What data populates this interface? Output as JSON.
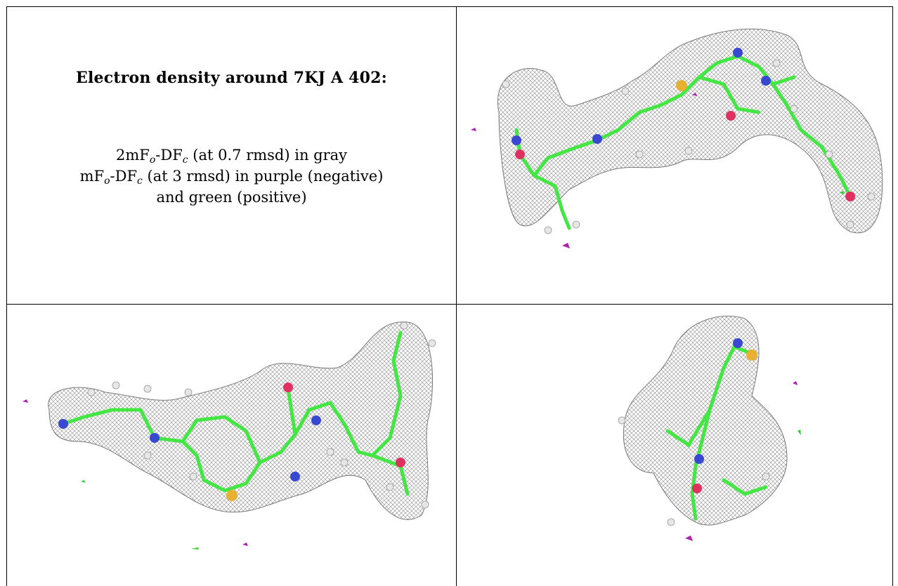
{
  "title": "Electron density around 7KJ A 402:",
  "legend": {
    "line1": {
      "pre": "2mF",
      "sub1": "o",
      "mid": "-DF",
      "sub2": "c",
      "post": " (at 0.7 rmsd) in gray"
    },
    "line2": {
      "pre": "mF",
      "sub1": "o",
      "mid": "-DF",
      "sub2": "c",
      "post": " (at 3 rmsd) in purple (negative)"
    },
    "line3": "and green (positive)"
  },
  "colors": {
    "mesh": "#8a8a8a",
    "carbon": "#44e644",
    "nitrogen": "#3848d0",
    "oxygen": "#e03060",
    "sulfur": "#e8b030",
    "hydrogen": "#e6e6e6",
    "negative": "#b020b0",
    "positive": "#30d030"
  },
  "views": [
    {
      "name": "view-top-right"
    },
    {
      "name": "view-bottom-left"
    },
    {
      "name": "view-bottom-right"
    }
  ]
}
